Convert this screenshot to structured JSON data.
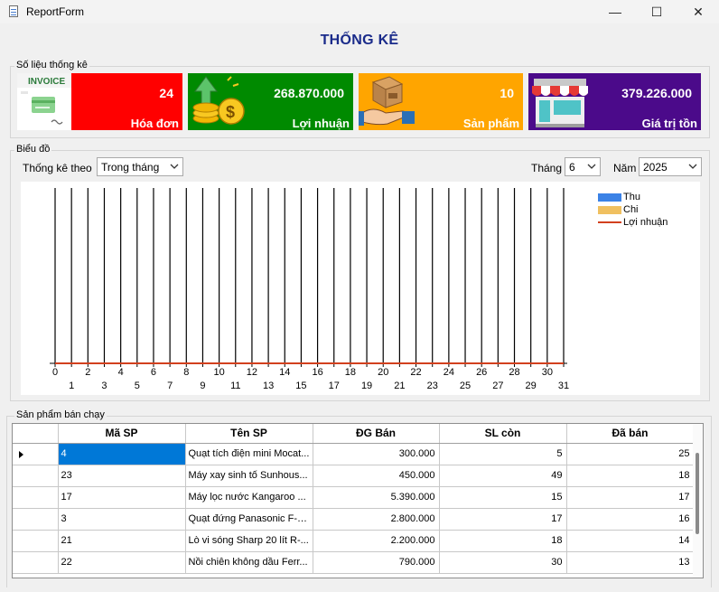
{
  "window": {
    "title": "ReportForm",
    "minimize_glyph": "—",
    "maximize_glyph": "☐",
    "close_glyph": "✕"
  },
  "heading": "THỐNG KÊ",
  "stats": {
    "group_label": "Số liệu thống kê",
    "cards": [
      {
        "value": "24",
        "label": "Hóa đơn",
        "icon": "invoice-icon",
        "color": "#ff0000"
      },
      {
        "value": "268.870.000",
        "label": "Lợi nhuận",
        "icon": "money-coins-icon",
        "color": "#008a00"
      },
      {
        "value": "10",
        "label": "Sản phẩm",
        "icon": "product-box-hand-icon",
        "color": "#ffa500"
      },
      {
        "value": "379.226.000",
        "label": "Giá trị tồn",
        "icon": "store-icon",
        "color": "#4b0a8a"
      }
    ],
    "invoice_text": "INVOICE"
  },
  "chart_panel": {
    "group_label": "Biểu đồ",
    "filter_label": "Thống kê theo",
    "filter_value": "Trong tháng",
    "month_label": "Tháng",
    "month_value": "6",
    "year_label": "Năm",
    "year_value": "2025"
  },
  "chart_data": {
    "type": "bar",
    "categories": [
      "0",
      "1",
      "2",
      "3",
      "4",
      "5",
      "6",
      "7",
      "8",
      "9",
      "10",
      "11",
      "12",
      "13",
      "14",
      "15",
      "16",
      "17",
      "18",
      "19",
      "20",
      "21",
      "22",
      "23",
      "24",
      "25",
      "26",
      "27",
      "28",
      "29",
      "30",
      "31"
    ],
    "xlim": [
      0,
      31
    ],
    "series": [
      {
        "name": "Thu",
        "type": "bar",
        "color": "#3b82e6",
        "values": [
          0,
          0,
          0,
          0,
          0,
          0,
          0,
          0,
          0,
          0,
          0,
          0,
          0,
          0,
          0,
          0,
          0,
          0,
          0,
          0,
          0,
          0,
          0,
          0,
          0,
          0,
          0,
          0,
          0,
          0,
          0,
          0
        ]
      },
      {
        "name": "Chi",
        "type": "bar",
        "color": "#f0c060",
        "values": [
          0,
          0,
          0,
          0,
          0,
          0,
          0,
          0,
          0,
          0,
          0,
          0,
          0,
          0,
          0,
          0,
          0,
          0,
          0,
          0,
          0,
          0,
          0,
          0,
          0,
          0,
          0,
          0,
          0,
          0,
          0,
          0
        ]
      },
      {
        "name": "Lợi nhuận",
        "type": "line",
        "color": "#d2401e",
        "values": [
          0,
          0,
          0,
          0,
          0,
          0,
          0,
          0,
          0,
          0,
          0,
          0,
          0,
          0,
          0,
          0,
          0,
          0,
          0,
          0,
          0,
          0,
          0,
          0,
          0,
          0,
          0,
          0,
          0,
          0,
          0,
          0
        ]
      }
    ],
    "grid": true,
    "legend_position": "top-right"
  },
  "best_sellers": {
    "group_label": "Sản phẩm bán chạy",
    "columns": [
      "Mã SP",
      "Tên SP",
      "ĐG Bán",
      "SL còn",
      "Đã bán"
    ],
    "rows": [
      [
        "4",
        "Quạt tích điện mini Mocat...",
        "300.000",
        "5",
        "25"
      ],
      [
        "23",
        "Máy xay sinh tố Sunhous...",
        "450.000",
        "49",
        "18"
      ],
      [
        "17",
        "Máy lọc nước Kangaroo ...",
        "5.390.000",
        "15",
        "17"
      ],
      [
        "3",
        "Quạt đứng Panasonic F-4...",
        "2.800.000",
        "17",
        "16"
      ],
      [
        "21",
        "Lò vi sóng Sharp 20 lít R-...",
        "2.200.000",
        "18",
        "14"
      ],
      [
        "22",
        "Nồi chiên không dầu Ferr...",
        "790.000",
        "30",
        "13"
      ]
    ]
  }
}
